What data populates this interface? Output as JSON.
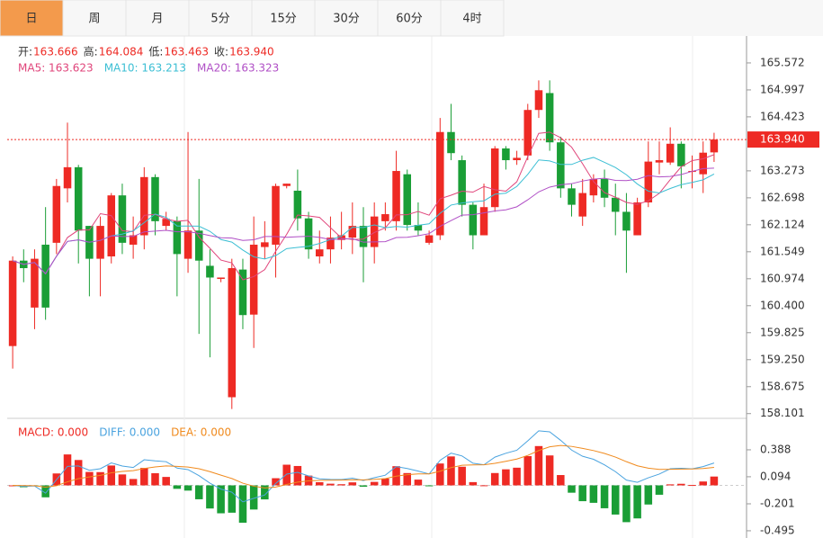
{
  "tabs": [
    "日",
    "周",
    "月",
    "5分",
    "15分",
    "30分",
    "60分",
    "4时"
  ],
  "chart_data": {
    "type": "candlestick",
    "info": [
      {
        "label": "开:",
        "value": "163.666"
      },
      {
        "label": "高:",
        "value": "164.084"
      },
      {
        "label": "低:",
        "value": "163.463"
      },
      {
        "label": "收:",
        "value": "163.940"
      }
    ],
    "ma_legend": [
      {
        "text": "MA5: 163.623",
        "color": "#e0457b",
        "period": 5
      },
      {
        "text": "MA10: 163.213",
        "color": "#3cbfd4",
        "period": 10
      },
      {
        "text": "MA20: 163.323",
        "color": "#b04fc6",
        "period": 20
      }
    ],
    "current_price_label": "163.940",
    "up_color": "#ee2a24",
    "down_color": "#1a9e36",
    "open": [
      159.54,
      161.36,
      160.36,
      161.7,
      161.74,
      162.9,
      163.35,
      162.1,
      161.4,
      161.45,
      162.75,
      161.7,
      161.9,
      163.14,
      162.1,
      162.2,
      161.4,
      162.0,
      161.25,
      160.97,
      158.45,
      161.17,
      160.21,
      161.65,
      161.7,
      162.95,
      162.85,
      162.26,
      161.45,
      161.6,
      161.8,
      161.85,
      162.1,
      161.65,
      162.2,
      162.2,
      163.2,
      162.12,
      161.74,
      161.9,
      164.1,
      163.5,
      162.55,
      161.9,
      162.5,
      163.75,
      163.5,
      163.6,
      164.57,
      164.93,
      163.88,
      162.9,
      162.3,
      162.75,
      163.1,
      162.7,
      162.4,
      161.9,
      162.6,
      163.45,
      163.45,
      163.85,
      163.25,
      163.2,
      163.666
    ],
    "high": [
      161.45,
      161.6,
      161.6,
      162.5,
      163.1,
      164.3,
      163.4,
      162.1,
      162.3,
      162.8,
      163.0,
      162.3,
      163.35,
      163.2,
      162.4,
      162.3,
      164.1,
      163.1,
      161.6,
      161.0,
      161.4,
      161.4,
      162.3,
      162.2,
      163.0,
      163.0,
      163.3,
      162.4,
      162.0,
      162.3,
      162.4,
      162.6,
      162.5,
      162.6,
      162.6,
      163.7,
      163.3,
      162.6,
      162.0,
      164.4,
      164.7,
      163.6,
      162.6,
      163.0,
      163.8,
      163.8,
      163.7,
      164.7,
      165.2,
      165.2,
      164.0,
      163.0,
      163.1,
      163.2,
      163.3,
      163.0,
      162.8,
      162.7,
      163.9,
      163.9,
      164.2,
      163.9,
      163.6,
      163.9,
      164.084
    ],
    "low": [
      159.06,
      160.9,
      159.9,
      160.1,
      161.5,
      162.6,
      161.3,
      160.6,
      160.6,
      161.3,
      161.5,
      161.4,
      161.6,
      161.9,
      162.0,
      160.6,
      161.1,
      159.8,
      159.3,
      160.9,
      158.2,
      159.9,
      159.5,
      161.4,
      161.0,
      162.9,
      162.0,
      161.4,
      161.3,
      161.3,
      161.6,
      161.5,
      160.9,
      161.3,
      162.0,
      162.0,
      162.0,
      161.9,
      161.7,
      161.8,
      163.5,
      162.3,
      161.6,
      161.9,
      162.4,
      163.3,
      163.4,
      163.5,
      164.4,
      163.7,
      162.7,
      162.3,
      162.1,
      162.6,
      162.5,
      161.9,
      161.1,
      161.9,
      162.5,
      163.2,
      163.4,
      162.9,
      162.9,
      162.8,
      163.463
    ],
    "close": [
      161.36,
      161.2,
      161.4,
      160.36,
      162.95,
      163.35,
      162.0,
      161.4,
      162.1,
      162.75,
      161.74,
      161.9,
      163.14,
      162.2,
      162.25,
      161.5,
      162.0,
      161.36,
      161.0,
      161.0,
      161.2,
      160.2,
      161.7,
      161.75,
      162.95,
      163.0,
      162.26,
      161.6,
      161.6,
      161.85,
      161.9,
      162.1,
      161.65,
      162.3,
      162.35,
      163.27,
      162.12,
      162.0,
      161.9,
      164.1,
      163.65,
      162.55,
      161.9,
      162.5,
      163.75,
      163.5,
      163.55,
      164.57,
      164.99,
      163.88,
      162.9,
      162.55,
      162.8,
      163.1,
      162.7,
      162.4,
      162.0,
      162.6,
      163.47,
      163.5,
      163.85,
      163.37,
      163.27,
      163.66,
      163.94
    ],
    "ylim": [
      158.0,
      166.05
    ],
    "yticks": [
      165.572,
      164.997,
      164.423,
      163.273,
      162.698,
      162.124,
      161.549,
      160.974,
      {
        "value": 160.4,
        "label": "160.400"
      },
      159.825,
      {
        "value": 159.25,
        "label": "159.250"
      },
      158.675,
      158.101
    ],
    "macd_legend": [
      {
        "text": "MACD: 0.000",
        "color": "#ee2a24"
      },
      {
        "text": "DIFF: 0.000",
        "color": "#4aa3df"
      },
      {
        "text": "DEA: 0.000",
        "color": "#f08a1d"
      }
    ],
    "macd_ylim": [
      -0.574,
      0.682
    ],
    "macd_yticks": [
      0.388,
      0.094,
      -0.201,
      -0.495
    ]
  }
}
